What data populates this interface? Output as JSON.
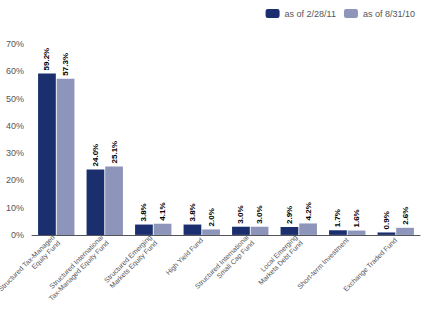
{
  "chart_data": {
    "type": "bar",
    "categories": [
      "Structured Tax-Managed\nEquity Fund",
      "Structured International\nTax-Managed Equity Fund",
      "Structured Emerging\nMarkets Equity Fund",
      "High Yield Fund",
      "Structured International\nSmall Cap Fund",
      "Local Emerging\nMarkets Debt Fund",
      "Short-term Investment",
      "Exchange Traded Fund"
    ],
    "series": [
      {
        "name": "as of 2/28/11",
        "color": "#1b2f6e",
        "values": [
          59.2,
          24.0,
          3.8,
          3.8,
          3.0,
          2.9,
          1.7,
          0.9
        ],
        "value_labels": [
          "59.2%",
          "24.0%",
          "3.8%",
          "3.8%",
          "3.0%",
          "2.9%",
          "1.7%",
          "0.9%"
        ]
      },
      {
        "name": "as of 8/31/10",
        "color": "#8d95ba",
        "values": [
          57.3,
          25.1,
          4.1,
          2.0,
          3.0,
          4.2,
          1.6,
          2.6
        ],
        "value_labels": [
          "57.3%",
          "25.1%",
          "4.1%",
          "2.0%",
          "3.0%",
          "4.2%",
          "1.6%",
          "2.6%"
        ]
      }
    ],
    "ylim": [
      0,
      70
    ],
    "yticks": [
      {
        "value": 0,
        "label": "0%"
      },
      {
        "value": 10,
        "label": "10%"
      },
      {
        "value": 20,
        "label": "20%"
      },
      {
        "value": 30,
        "label": "30%"
      },
      {
        "value": 40,
        "label": "40%"
      },
      {
        "value": 50,
        "label": "50%"
      },
      {
        "value": 60,
        "label": "60%"
      },
      {
        "value": 70,
        "label": "70%"
      }
    ],
    "grid": false,
    "legend": "upper right",
    "data_labels": true
  }
}
